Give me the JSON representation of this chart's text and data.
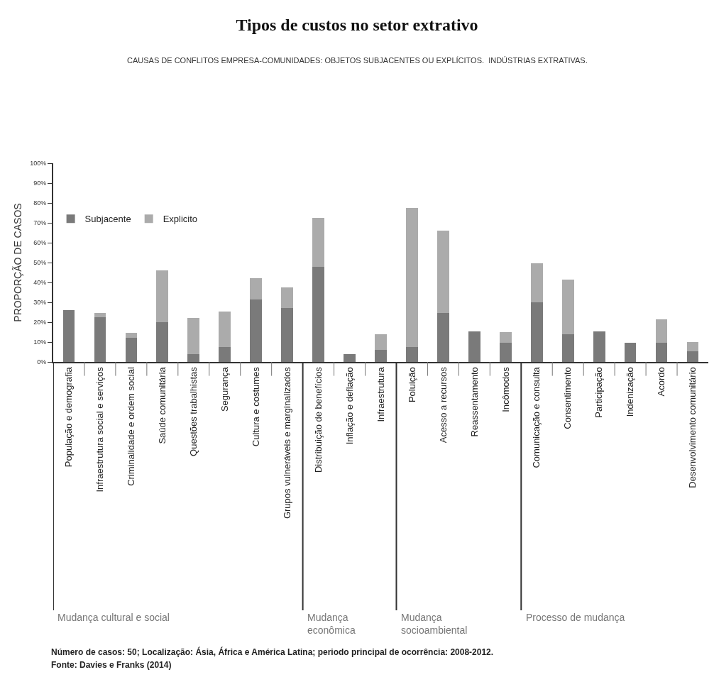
{
  "chart_data": {
    "type": "bar",
    "title": "Tipos de custos no setor extrativo",
    "subtitle": "CAUSAS DE CONFLITOS EMPRESA-COMUNIDADES: OBJETOS SUBJACENTES OU EXPLÍCITOS.  INDÚSTRIAS EXTRATIVAS.",
    "ylabel": "PROPORÇÃO DE CASOS",
    "categories": [
      "População e demografia",
      "Infraestrutura social e serviços",
      "Criminalidade e ordem social",
      "Saúde comunitária",
      "Questões trabalhistas",
      "Segurança",
      "Cultura e costumes",
      "Grupos vulneráveis e marginalizados",
      "Distribuição de benefícios",
      "Inflação e deflação",
      "Infraestrutura",
      "Poluição",
      "Acesso a recursos",
      "Reassentamento",
      "Incômodos",
      "Comunicação e consulta",
      "Consentimento",
      "Participação",
      "Indenização",
      "Acordo",
      "Desenvolvimento comunitário"
    ],
    "stacked": true,
    "series": [
      {
        "name": "Subjacente",
        "color": "#7a7a7a",
        "values": [
          26,
          22.5,
          12,
          20,
          4,
          7.5,
          31.5,
          27,
          48,
          4,
          6,
          7.5,
          24.5,
          15.5,
          9.5,
          30,
          14,
          15.5,
          9.5,
          9.5,
          5.5
        ]
      },
      {
        "name": "Explicito",
        "color": "#ababab",
        "values": [
          0,
          2,
          2.5,
          26,
          18,
          18,
          10.5,
          10.5,
          24.5,
          0,
          8,
          70,
          41.5,
          0,
          5.5,
          19.5,
          27.5,
          0,
          0,
          12,
          4.5
        ]
      }
    ],
    "ylim": [
      0,
      100
    ],
    "yticks": [
      {
        "value": 0,
        "label": "0%"
      },
      {
        "value": 10,
        "label": "10%"
      },
      {
        "value": 20,
        "label": "20%"
      },
      {
        "value": 30,
        "label": "30%"
      },
      {
        "value": 40,
        "label": "40%"
      },
      {
        "value": 50,
        "label": "50%"
      },
      {
        "value": 60,
        "label": "60%"
      },
      {
        "value": 70,
        "label": "70%"
      },
      {
        "value": 80,
        "label": "80%"
      },
      {
        "value": 90,
        "label": "90%"
      },
      {
        "value": 100,
        "label": "100%"
      }
    ],
    "legend": "top left",
    "annotations": [
      "Mudança cultural e social",
      "Mudança\neconômica",
      "Mudança\nsocioambiental",
      "Processo de mudança",
      "Número de casos: 50; Localização: Ásia, África e América Latina; periodo principal de ocorrência: 2008-2012.",
      "Fonte: Davies e Franks (2014)"
    ]
  }
}
